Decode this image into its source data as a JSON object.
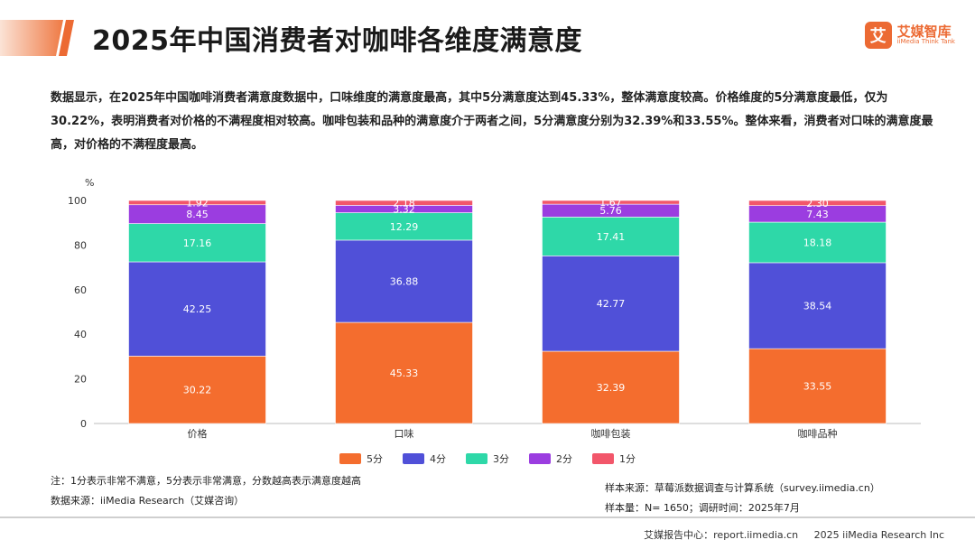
{
  "header": {
    "title": "2025年中国消费者对咖啡各维度满意度",
    "brand_logo_char": "艾",
    "brand_name": "艾媒智库",
    "brand_sub": "iiMedia Think Tank",
    "accent": "#ec6a33"
  },
  "description": "数据显示，在2025年中国咖啡消费者满意度数据中，口味维度的满意度最高，其中5分满意度达到45.33%，整体满意度较高。价格维度的5分满意度最低，仅为30.22%，表明消费者对价格的不满程度相对较高。咖啡包装和品种的满意度介于两者之间，5分满意度分别为32.39%和33.55%。整体来看，消费者对口味的满意度最高，对价格的不满程度最高。",
  "chart_data": {
    "type": "bar",
    "stacked": true,
    "categories": [
      "价格",
      "口味",
      "咖啡包装",
      "咖啡品种"
    ],
    "ylabel": "%",
    "ylim": [
      0,
      100
    ],
    "yticks": [
      0,
      20,
      40,
      60,
      80,
      100
    ],
    "legend_position": "bottom",
    "series": [
      {
        "name": "5分",
        "color": "#f46d2e",
        "values": [
          30.22,
          45.33,
          32.39,
          33.55
        ]
      },
      {
        "name": "4分",
        "color": "#5050d8",
        "values": [
          42.25,
          36.88,
          42.77,
          38.54
        ]
      },
      {
        "name": "3分",
        "color": "#2ed8a8",
        "values": [
          17.16,
          12.29,
          17.41,
          18.18
        ]
      },
      {
        "name": "2分",
        "color": "#9b3de0",
        "values": [
          8.45,
          3.32,
          5.76,
          7.43
        ]
      },
      {
        "name": "1分",
        "color": "#f2566a",
        "values": [
          1.92,
          2.18,
          1.67,
          2.3
        ]
      }
    ]
  },
  "notes": {
    "note1": "注：1分表示非常不满意，5分表示非常满意，分数越高表示满意度越高",
    "note2": "数据来源：iiMedia Research（艾媒咨询）",
    "sample_source": "样本来源：草莓派数据调查与计算系统（survey.iimedia.cn）",
    "sample_size": "样本量：N= 1650；调研时间：2025年7月"
  },
  "footer": {
    "center": "艾媒报告中心：report.iimedia.cn",
    "copyright": "2025 iiMedia Research Inc"
  }
}
